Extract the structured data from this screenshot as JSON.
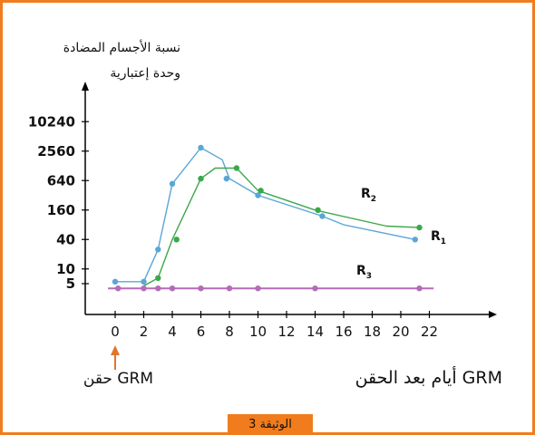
{
  "chart_data": {
    "type": "line",
    "ylabel_line1": "نسبة الأجسام المضادة",
    "ylabel_line2": "وحدة إعتبارية",
    "xlabel": "أيام بعد الحقن GRM",
    "injection_label": "حقن GRM",
    "x_ticks": [
      0,
      2,
      4,
      6,
      8,
      10,
      12,
      14,
      16,
      18,
      20,
      22
    ],
    "y_ticks": [
      5,
      10,
      40,
      160,
      640,
      2560,
      10240
    ],
    "y_scale": "log",
    "series": [
      {
        "name": "R1",
        "label_main": "R",
        "label_sub": "1",
        "color": "#5aa6d6",
        "x": [
          0,
          2,
          3,
          4,
          6,
          7.5,
          8,
          10,
          14.5,
          16,
          21
        ],
        "y": [
          5.5,
          5.5,
          25,
          550,
          3000,
          1700,
          700,
          320,
          120,
          80,
          40
        ],
        "markers": [
          [
            0,
            5.5
          ],
          [
            2,
            5.5
          ],
          [
            3,
            25
          ],
          [
            4,
            550
          ],
          [
            6,
            3000
          ],
          [
            7.8,
            700
          ],
          [
            10,
            320
          ],
          [
            14.5,
            120
          ],
          [
            21,
            40
          ]
        ]
      },
      {
        "name": "R2",
        "label_main": "R",
        "label_sub": "2",
        "color": "#3aa84a",
        "x": [
          2,
          3,
          4,
          6,
          7,
          8.5,
          10,
          14,
          19,
          21.3
        ],
        "y": [
          4.5,
          6.5,
          40,
          700,
          1150,
          1150,
          400,
          160,
          75,
          70
        ],
        "markers": [
          [
            3,
            6.5
          ],
          [
            4.3,
            40
          ],
          [
            6,
            700
          ],
          [
            8.5,
            1150
          ],
          [
            10.2,
            400
          ],
          [
            14.2,
            160
          ],
          [
            21.3,
            70
          ]
        ]
      },
      {
        "name": "R3",
        "label_main": "R",
        "label_sub": "3",
        "color": "#b56bb8",
        "x": [
          -0.5,
          22.3
        ],
        "y": [
          4,
          4
        ],
        "markers": [
          [
            0.2,
            4
          ],
          [
            2,
            4
          ],
          [
            3,
            4
          ],
          [
            4,
            4
          ],
          [
            6,
            4
          ],
          [
            8,
            4
          ],
          [
            10,
            4
          ],
          [
            14,
            4
          ],
          [
            21.3,
            4
          ]
        ]
      }
    ]
  },
  "caption": "الوثيقة 3",
  "colors": {
    "frame": "#f07c1e",
    "arrow": "#e0752a",
    "axis": "#000000"
  }
}
